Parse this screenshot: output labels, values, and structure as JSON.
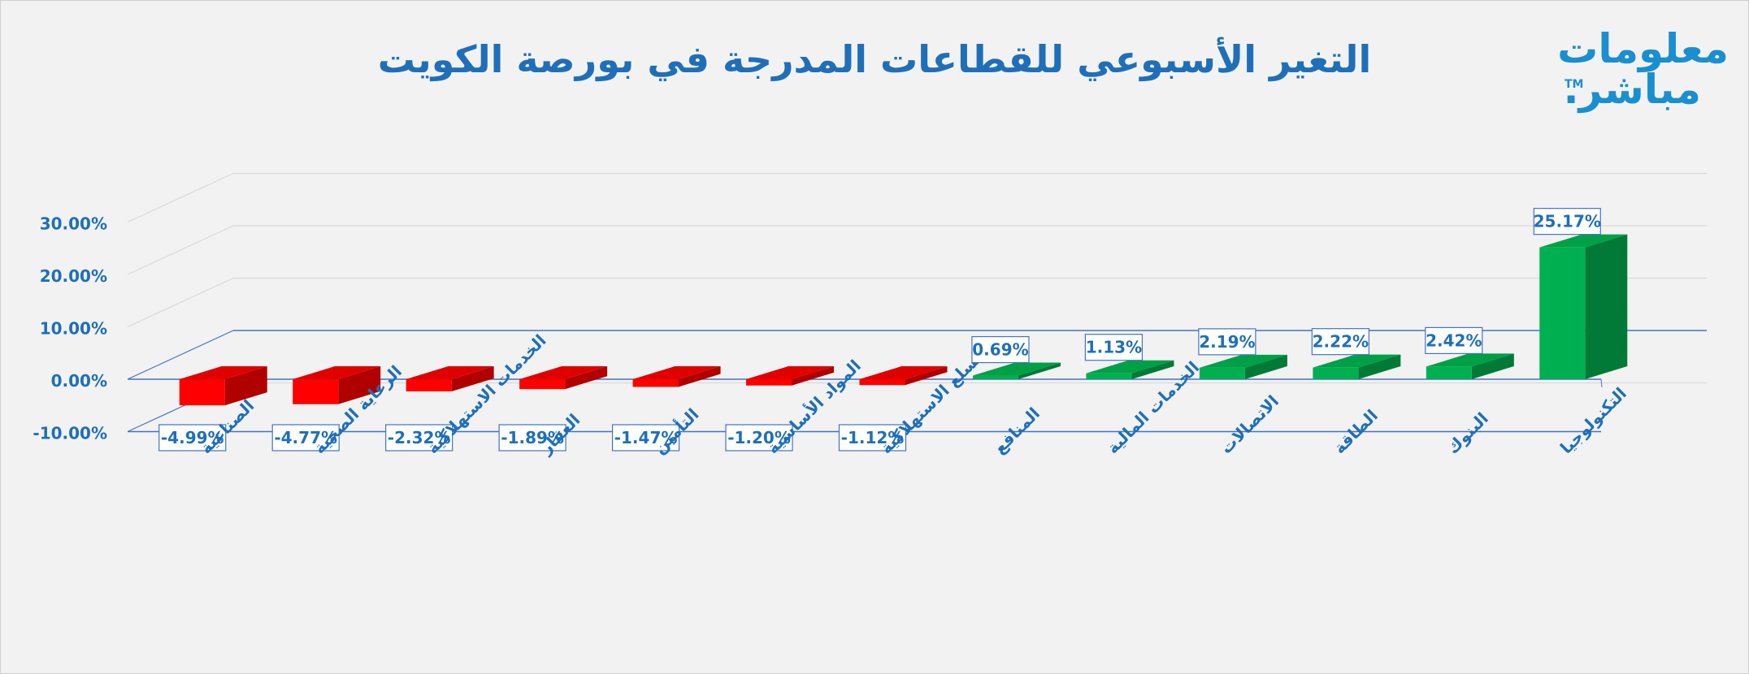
{
  "chart_data": {
    "type": "bar",
    "title": "التغير الأسبوعي للقطاعات المدرجة في بورصة الكويت",
    "categories": [
      "الصناعية",
      "الرعاية الصحية",
      "الخدمات الاستهلاكية",
      "العقار",
      "التأمين",
      "المواد الأساسية",
      "السلع الاستهلاكية",
      "المنافع",
      "الخدمات المالية",
      "الاتصالات",
      "الطاقة",
      "البنوك",
      "التكنولوجيا"
    ],
    "values": [
      -4.99,
      -4.77,
      -2.32,
      -1.89,
      -1.47,
      -1.2,
      -1.12,
      0.69,
      1.13,
      2.19,
      2.22,
      2.42,
      25.17
    ],
    "data_labels": [
      "-4.99%",
      "-4.77%",
      "-2.32%",
      "-1.89%",
      "-1.47%",
      "-1.20%",
      "-1.12%",
      "0.69%",
      "1.13%",
      "2.19%",
      "2.22%",
      "2.42%",
      "25.17%"
    ],
    "y_ticks": [
      -10,
      0,
      10,
      20,
      30
    ],
    "y_tick_labels": [
      "-10.00%",
      "0.00%",
      "10.00%",
      "20.00%",
      "30.00%"
    ],
    "ylim": [
      -10,
      30
    ],
    "xlabel": "",
    "ylabel": "",
    "grid": true,
    "style": "3d-column",
    "colors": {
      "negative_front": "#ff0000",
      "negative_top": "#e00000",
      "negative_side": "#b00000",
      "positive_front": "#00b050",
      "positive_top": "#00a046",
      "positive_side": "#007a36",
      "axis_text": "#1f6fb8",
      "axis_line": "#4472c4",
      "grid": "#d9d9d9",
      "label_border": "#4472c4",
      "label_bg": "#ffffff"
    }
  },
  "logo": {
    "line1": "معلومات",
    "line2": "مباشر.",
    "tm": "TM",
    "color": "#1a8fd0"
  }
}
